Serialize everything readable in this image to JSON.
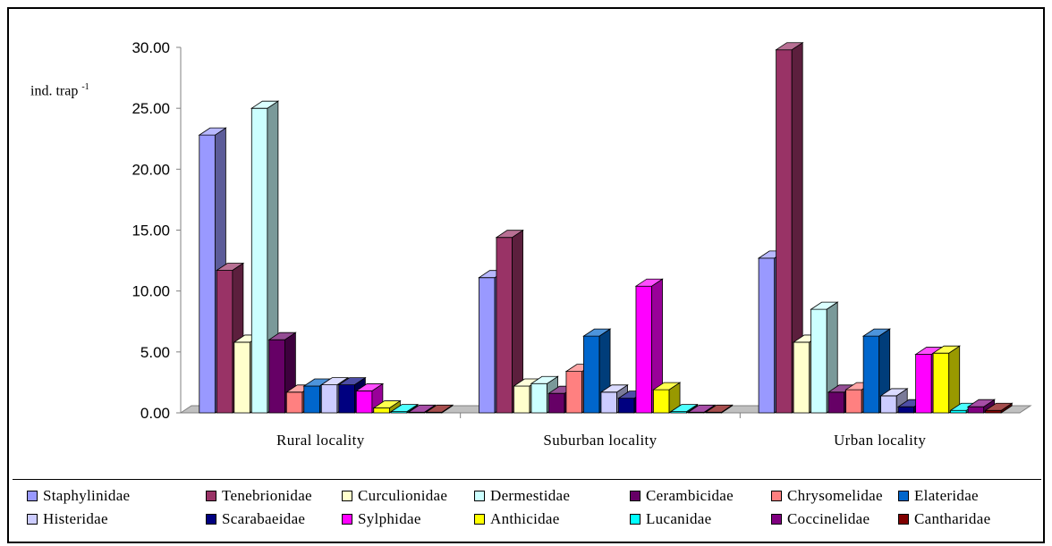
{
  "chart_data": {
    "type": "bar",
    "style": "3d-clustered-column",
    "ylabel": "ind. trap",
    "ylabel_sup": "-1",
    "ylim": [
      0,
      30
    ],
    "yticks": [
      "0.00",
      "5.00",
      "10.00",
      "15.00",
      "20.00",
      "25.00",
      "30.00"
    ],
    "categories": [
      "Rural locality",
      "Suburban locality",
      "Urban locality"
    ],
    "grid": false,
    "legend_position": "bottom",
    "series": [
      {
        "name": "Staphylinidae",
        "color": "#9999ff",
        "values": [
          22.8,
          11.1,
          12.7
        ]
      },
      {
        "name": "Tenebrionidae",
        "color": "#993366",
        "values": [
          11.7,
          14.4,
          29.8
        ]
      },
      {
        "name": "Curculionidae",
        "color": "#ffffcc",
        "values": [
          5.8,
          2.2,
          5.8
        ]
      },
      {
        "name": "Dermestidae",
        "color": "#ccffff",
        "values": [
          25.0,
          2.4,
          8.5
        ]
      },
      {
        "name": "Cerambicidae",
        "color": "#660066",
        "values": [
          6.0,
          1.6,
          1.7
        ]
      },
      {
        "name": "Chrysomelidae",
        "color": "#ff8080",
        "values": [
          1.7,
          3.4,
          1.9
        ]
      },
      {
        "name": "Elateridae",
        "color": "#0066cc",
        "values": [
          2.2,
          6.3,
          6.3
        ]
      },
      {
        "name": "Histeridae",
        "color": "#ccccff",
        "values": [
          2.3,
          1.7,
          1.4
        ]
      },
      {
        "name": "Scarabaeidae",
        "color": "#000080",
        "values": [
          2.3,
          1.2,
          0.5
        ]
      },
      {
        "name": "Sylphidae",
        "color": "#ff00ff",
        "values": [
          1.8,
          10.4,
          4.8
        ]
      },
      {
        "name": "Anthicidae",
        "color": "#ffff00",
        "values": [
          0.4,
          1.9,
          4.9
        ]
      },
      {
        "name": "Lucanidae",
        "color": "#00ffff",
        "values": [
          0.1,
          0.1,
          0.2
        ]
      },
      {
        "name": "Coccinelidae",
        "color": "#800080",
        "values": [
          0.05,
          0.05,
          0.5
        ]
      },
      {
        "name": "Cantharidae",
        "color": "#800000",
        "values": [
          0.05,
          0.05,
          0.2
        ]
      }
    ]
  }
}
